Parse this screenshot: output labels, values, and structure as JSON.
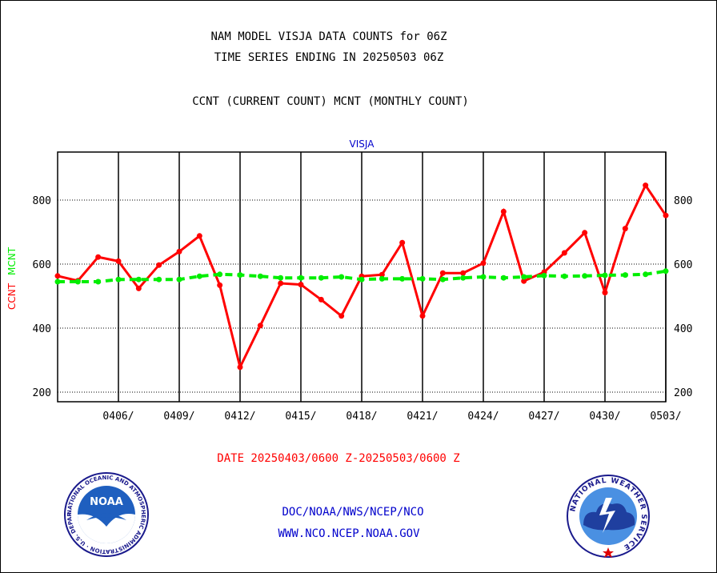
{
  "header": {
    "title_line1": "NAM MODEL VISJA DATA COUNTS for 06Z",
    "title_line2": "TIME SERIES ENDING IN 20250503 06Z",
    "subtitle": "CCNT (CURRENT COUNT) MCNT (MONTHLY COUNT)"
  },
  "footer": {
    "date_range": "DATE 20250403/0600 Z-20250503/0600 Z",
    "org_line": "DOC/NOAA/NWS/NCEP/NCO",
    "url_line": "WWW.NCO.NCEP.NOAA.GOV"
  },
  "logos": {
    "noaa_label": "NOAA",
    "noaa_ring_text": "NATIONAL OCEANIC AND ATMOSPHERIC ADMINISTRATION · U.S. DEPARTMENT OF COMMERCE ·",
    "nws_ring_text": "NATIONAL WEATHER SERVICE"
  },
  "colors": {
    "ccnt": "#ff0000",
    "mcnt": "#00ee00",
    "plot_label": "#0000cc",
    "footer_text": "#0000cc",
    "date_text": "#ff0000"
  },
  "chart_data": {
    "type": "line",
    "plot_label": "VISJA",
    "ylabel_left_1": "CCNT",
    "ylabel_left_2": "MCNT",
    "x_tick_labels": [
      "0406/",
      "0409/",
      "0412/",
      "0415/",
      "0418/",
      "0421/",
      "0424/",
      "0427/",
      "0430/",
      "0503/"
    ],
    "x_tick_days": [
      3,
      6,
      9,
      12,
      15,
      18,
      21,
      24,
      27,
      30
    ],
    "x_range_days": [
      0,
      30
    ],
    "x_start": "2025-04-03 06Z",
    "y_ticks": [
      200,
      400,
      600,
      800
    ],
    "ylim": [
      170,
      950
    ],
    "grid": true,
    "x": [
      0,
      1,
      2,
      3,
      4,
      5,
      6,
      7,
      8,
      9,
      10,
      11,
      12,
      13,
      14,
      15,
      16,
      17,
      18,
      19,
      20,
      21,
      22,
      23,
      24,
      25,
      26,
      27,
      28,
      29,
      30
    ],
    "series": [
      {
        "name": "CCNT",
        "style": "solid",
        "values": [
          563,
          548,
          622,
          609,
          524,
          597,
          639,
          688,
          534,
          278,
          408,
          540,
          536,
          489,
          438,
          562,
          567,
          667,
          438,
          572,
          572,
          603,
          764,
          547,
          575,
          635,
          698,
          511,
          711,
          846,
          752
        ]
      },
      {
        "name": "MCNT",
        "style": "dashed",
        "values": [
          545,
          545,
          545,
          552,
          552,
          552,
          552,
          562,
          568,
          566,
          562,
          557,
          557,
          557,
          560,
          552,
          554,
          554,
          554,
          552,
          557,
          560,
          557,
          560,
          564,
          562,
          563,
          565,
          566,
          568,
          578
        ]
      }
    ]
  }
}
